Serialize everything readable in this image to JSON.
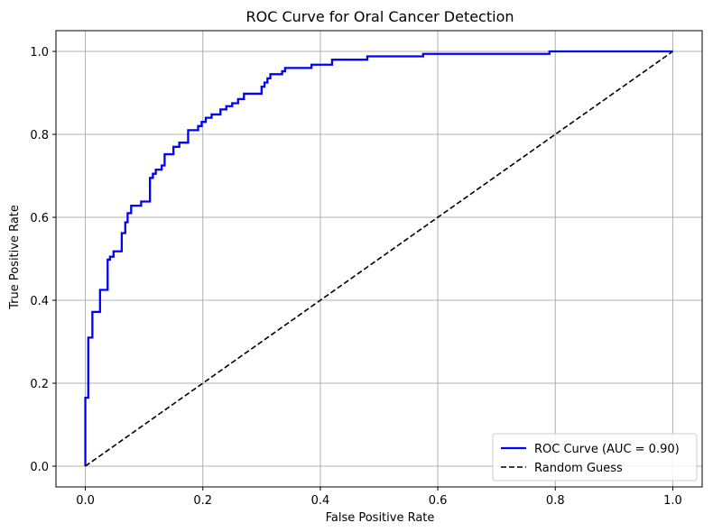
{
  "chart_data": {
    "type": "line",
    "title": "ROC Curve for Oral Cancer Detection",
    "xlabel": "False Positive Rate",
    "ylabel": "True Positive Rate",
    "xlim": [
      -0.05,
      1.05
    ],
    "ylim": [
      -0.05,
      1.05
    ],
    "xticks": [
      0.0,
      0.2,
      0.4,
      0.6,
      0.8,
      1.0
    ],
    "yticks": [
      0.0,
      0.2,
      0.4,
      0.6,
      0.8,
      1.0
    ],
    "xtick_labels": [
      "0.0",
      "0.2",
      "0.4",
      "0.6",
      "0.8",
      "1.0"
    ],
    "ytick_labels": [
      "0.0",
      "0.2",
      "0.4",
      "0.6",
      "0.8",
      "1.0"
    ],
    "grid": true,
    "legend_position": "lower right",
    "series": [
      {
        "name": "ROC Curve (AUC = 0.90)",
        "color": "#0000ff",
        "style": "solid",
        "x": [
          0.0,
          0.0,
          0.005,
          0.005,
          0.012,
          0.012,
          0.025,
          0.025,
          0.038,
          0.038,
          0.042,
          0.042,
          0.048,
          0.048,
          0.062,
          0.062,
          0.068,
          0.068,
          0.072,
          0.072,
          0.078,
          0.078,
          0.095,
          0.095,
          0.11,
          0.11,
          0.115,
          0.115,
          0.12,
          0.12,
          0.13,
          0.13,
          0.135,
          0.135,
          0.15,
          0.15,
          0.16,
          0.16,
          0.175,
          0.175,
          0.192,
          0.192,
          0.198,
          0.198,
          0.205,
          0.205,
          0.215,
          0.215,
          0.23,
          0.23,
          0.24,
          0.24,
          0.25,
          0.25,
          0.26,
          0.26,
          0.27,
          0.27,
          0.3,
          0.3,
          0.305,
          0.305,
          0.31,
          0.31,
          0.315,
          0.315,
          0.335,
          0.335,
          0.34,
          0.34,
          0.385,
          0.385,
          0.42,
          0.42,
          0.48,
          0.48,
          0.575,
          0.575,
          0.79,
          0.79,
          1.0
        ],
        "y": [
          0.0,
          0.165,
          0.165,
          0.31,
          0.31,
          0.372,
          0.372,
          0.425,
          0.425,
          0.498,
          0.498,
          0.505,
          0.505,
          0.518,
          0.518,
          0.562,
          0.562,
          0.588,
          0.588,
          0.61,
          0.61,
          0.628,
          0.628,
          0.638,
          0.638,
          0.695,
          0.695,
          0.705,
          0.705,
          0.715,
          0.715,
          0.725,
          0.725,
          0.752,
          0.752,
          0.77,
          0.77,
          0.78,
          0.78,
          0.81,
          0.81,
          0.82,
          0.82,
          0.83,
          0.83,
          0.84,
          0.84,
          0.848,
          0.848,
          0.86,
          0.86,
          0.868,
          0.868,
          0.875,
          0.875,
          0.885,
          0.885,
          0.898,
          0.898,
          0.915,
          0.915,
          0.925,
          0.925,
          0.935,
          0.935,
          0.945,
          0.945,
          0.952,
          0.952,
          0.96,
          0.96,
          0.968,
          0.968,
          0.98,
          0.98,
          0.988,
          0.988,
          0.994,
          0.994,
          1.0,
          1.0
        ]
      },
      {
        "name": "Random Guess",
        "color": "#000000",
        "style": "dashed",
        "x": [
          0.0,
          1.0
        ],
        "y": [
          0.0,
          1.0
        ]
      }
    ]
  }
}
